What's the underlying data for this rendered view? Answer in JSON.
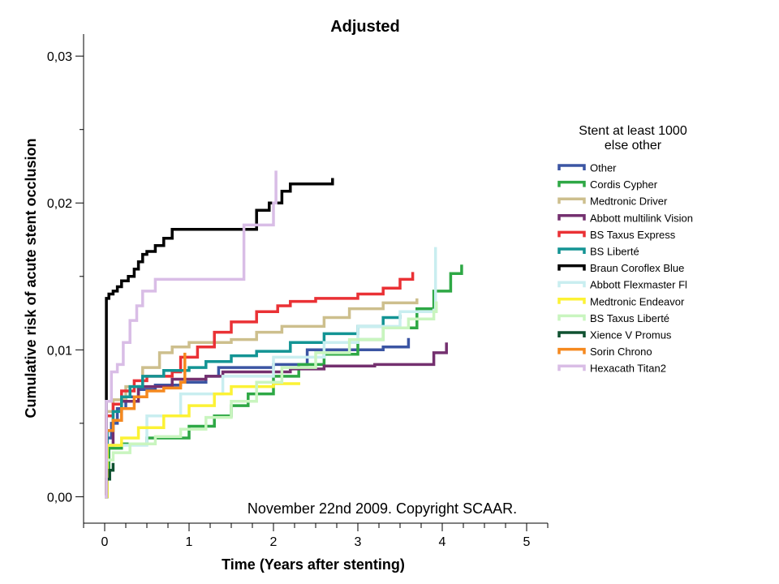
{
  "chart_data": {
    "type": "line",
    "step": true,
    "title": "Adjusted",
    "xlabel": "Time (Years after stenting)",
    "ylabel": "Cumulative risk of acute stent occlusion",
    "xlim": [
      -0.25,
      5.25
    ],
    "ylim": [
      -0.0018,
      0.0315
    ],
    "x_ticks": [
      0,
      1,
      2,
      3,
      4,
      5
    ],
    "x_tick_labels": [
      "0",
      "1",
      "2",
      "3",
      "4",
      "5"
    ],
    "y_ticks": [
      0.0,
      0.01,
      0.02,
      0.03
    ],
    "y_tick_labels": [
      "0,00",
      "0,01",
      "0,02",
      "0,03"
    ],
    "legend_title_lines": [
      "Stent at least 1000",
      "else other"
    ],
    "legend_position": "right",
    "annotation": "November 22nd 2009. Copyright SCAAR.",
    "series": [
      {
        "name": "Other",
        "color": "#3b55a3",
        "points": [
          [
            0,
            0
          ],
          [
            0.03,
            0.004
          ],
          [
            0.08,
            0.005
          ],
          [
            0.15,
            0.006
          ],
          [
            0.25,
            0.0068
          ],
          [
            0.4,
            0.0073
          ],
          [
            0.6,
            0.0076
          ],
          [
            0.9,
            0.0078
          ],
          [
            1.2,
            0.0082
          ],
          [
            1.35,
            0.0088
          ],
          [
            2.0,
            0.009
          ],
          [
            2.4,
            0.01
          ],
          [
            3.3,
            0.0102
          ],
          [
            3.6,
            0.0108
          ]
        ]
      },
      {
        "name": "Cordis Cypher",
        "color": "#2ea845",
        "points": [
          [
            0,
            0
          ],
          [
            0.02,
            0.002
          ],
          [
            0.05,
            0.0033
          ],
          [
            0.2,
            0.0036
          ],
          [
            0.5,
            0.004
          ],
          [
            1.0,
            0.0048
          ],
          [
            1.3,
            0.0055
          ],
          [
            1.5,
            0.0062
          ],
          [
            1.7,
            0.007
          ],
          [
            2.0,
            0.0082
          ],
          [
            2.3,
            0.009
          ],
          [
            2.6,
            0.0097
          ],
          [
            3.0,
            0.0107
          ],
          [
            3.3,
            0.0115
          ],
          [
            3.7,
            0.0128
          ],
          [
            3.9,
            0.014
          ],
          [
            4.1,
            0.0152
          ],
          [
            4.23,
            0.0158
          ]
        ]
      },
      {
        "name": "Medtronic Driver",
        "color": "#cdbf8d",
        "points": [
          [
            0,
            0
          ],
          [
            0.02,
            0.0058
          ],
          [
            0.1,
            0.0066
          ],
          [
            0.25,
            0.0075
          ],
          [
            0.45,
            0.0088
          ],
          [
            0.65,
            0.0098
          ],
          [
            0.8,
            0.0102
          ],
          [
            1.0,
            0.0105
          ],
          [
            1.5,
            0.0107
          ],
          [
            1.8,
            0.0112
          ],
          [
            2.1,
            0.0116
          ],
          [
            2.6,
            0.0122
          ],
          [
            2.9,
            0.0128
          ],
          [
            3.3,
            0.0132
          ],
          [
            3.7,
            0.0135
          ]
        ]
      },
      {
        "name": "Abbott multilink Vision",
        "color": "#74306f",
        "points": [
          [
            0,
            0
          ],
          [
            0.03,
            0.0035
          ],
          [
            0.1,
            0.0052
          ],
          [
            0.2,
            0.0065
          ],
          [
            0.4,
            0.0075
          ],
          [
            0.8,
            0.008
          ],
          [
            1.2,
            0.0082
          ],
          [
            1.4,
            0.0085
          ],
          [
            2.2,
            0.0087
          ],
          [
            2.6,
            0.0089
          ],
          [
            3.2,
            0.009
          ],
          [
            3.9,
            0.0098
          ],
          [
            4.05,
            0.0105
          ]
        ]
      },
      {
        "name": "BS Taxus Express",
        "color": "#ea3135",
        "points": [
          [
            0,
            0
          ],
          [
            0.02,
            0.0055
          ],
          [
            0.1,
            0.0063
          ],
          [
            0.2,
            0.0072
          ],
          [
            0.35,
            0.0079
          ],
          [
            0.5,
            0.0082
          ],
          [
            0.8,
            0.0085
          ],
          [
            0.9,
            0.0095
          ],
          [
            1.1,
            0.0102
          ],
          [
            1.3,
            0.0112
          ],
          [
            1.5,
            0.0119
          ],
          [
            1.8,
            0.0126
          ],
          [
            2.05,
            0.013
          ],
          [
            2.2,
            0.0133
          ],
          [
            2.5,
            0.0135
          ],
          [
            3.0,
            0.0138
          ],
          [
            3.3,
            0.0142
          ],
          [
            3.5,
            0.0148
          ],
          [
            3.65,
            0.0153
          ]
        ]
      },
      {
        "name": "BS Liberté",
        "color": "#139494",
        "points": [
          [
            0,
            0
          ],
          [
            0.03,
            0.0045
          ],
          [
            0.1,
            0.0058
          ],
          [
            0.2,
            0.0068
          ],
          [
            0.3,
            0.0075
          ],
          [
            0.45,
            0.0082
          ],
          [
            0.7,
            0.0086
          ],
          [
            1.0,
            0.0088
          ],
          [
            1.2,
            0.0092
          ],
          [
            1.5,
            0.0096
          ],
          [
            1.8,
            0.0099
          ],
          [
            2.2,
            0.0105
          ],
          [
            2.6,
            0.0111
          ],
          [
            3.0,
            0.0116
          ],
          [
            3.3,
            0.0122
          ],
          [
            3.5,
            0.0124
          ]
        ]
      },
      {
        "name": "Braun Coroflex Blue",
        "color": "#000000",
        "points": [
          [
            0,
            0
          ],
          [
            0.02,
            0.0135
          ],
          [
            0.05,
            0.0138
          ],
          [
            0.1,
            0.014
          ],
          [
            0.15,
            0.0143
          ],
          [
            0.2,
            0.0147
          ],
          [
            0.28,
            0.015
          ],
          [
            0.35,
            0.0155
          ],
          [
            0.4,
            0.016
          ],
          [
            0.45,
            0.0165
          ],
          [
            0.5,
            0.0167
          ],
          [
            0.6,
            0.0171
          ],
          [
            0.7,
            0.0176
          ],
          [
            0.8,
            0.0182
          ],
          [
            1.8,
            0.0195
          ],
          [
            1.95,
            0.02
          ],
          [
            2.1,
            0.0208
          ],
          [
            2.2,
            0.0213
          ],
          [
            2.7,
            0.0217
          ]
        ]
      },
      {
        "name": "Abbott Flexmaster Fl",
        "color": "#c9eef0",
        "points": [
          [
            0,
            0
          ],
          [
            0.02,
            0.0035
          ],
          [
            0.5,
            0.0055
          ],
          [
            0.9,
            0.007
          ],
          [
            1.4,
            0.0082
          ],
          [
            2.0,
            0.0095
          ],
          [
            2.6,
            0.0105
          ],
          [
            3.0,
            0.0116
          ],
          [
            3.5,
            0.0126
          ],
          [
            3.9,
            0.0127
          ],
          [
            3.92,
            0.017
          ]
        ]
      },
      {
        "name": "Medtronic Endeavor",
        "color": "#fcf235",
        "points": [
          [
            0,
            0
          ],
          [
            0.03,
            0.0035
          ],
          [
            0.2,
            0.004
          ],
          [
            0.4,
            0.0047
          ],
          [
            0.7,
            0.0055
          ],
          [
            1.0,
            0.0062
          ],
          [
            1.3,
            0.007
          ],
          [
            1.5,
            0.0075
          ],
          [
            2.0,
            0.0077
          ],
          [
            2.3,
            0.0078
          ]
        ]
      },
      {
        "name": "BS Taxus Liberté",
        "color": "#c9f5bf",
        "points": [
          [
            0,
            0
          ],
          [
            0.02,
            0.0025
          ],
          [
            0.1,
            0.003
          ],
          [
            0.3,
            0.0036
          ],
          [
            0.6,
            0.0041
          ],
          [
            0.9,
            0.0046
          ],
          [
            1.2,
            0.0054
          ],
          [
            1.5,
            0.0065
          ],
          [
            1.8,
            0.0078
          ],
          [
            2.1,
            0.0088
          ],
          [
            2.5,
            0.0098
          ],
          [
            2.9,
            0.0107
          ],
          [
            3.3,
            0.0115
          ],
          [
            3.6,
            0.0121
          ],
          [
            3.9,
            0.0126
          ],
          [
            3.93,
            0.0133
          ]
        ]
      },
      {
        "name": "Xience V Promus",
        "color": "#0f5130",
        "points": [
          [
            0,
            0
          ],
          [
            0.02,
            0.0012
          ],
          [
            0.06,
            0.0018
          ],
          [
            0.1,
            0.0023
          ]
        ]
      },
      {
        "name": "Sorin Chrono",
        "color": "#f5891f",
        "points": [
          [
            0,
            0
          ],
          [
            0.02,
            0.0045
          ],
          [
            0.1,
            0.0052
          ],
          [
            0.2,
            0.006
          ],
          [
            0.35,
            0.0068
          ],
          [
            0.5,
            0.0072
          ],
          [
            0.7,
            0.0074
          ],
          [
            0.9,
            0.0078
          ],
          [
            0.95,
            0.0098
          ]
        ]
      },
      {
        "name": "Hexacath Titan2",
        "color": "#d9bde6",
        "points": [
          [
            0,
            0
          ],
          [
            0.02,
            0.0065
          ],
          [
            0.08,
            0.0085
          ],
          [
            0.15,
            0.009
          ],
          [
            0.22,
            0.0105
          ],
          [
            0.3,
            0.012
          ],
          [
            0.38,
            0.013
          ],
          [
            0.45,
            0.014
          ],
          [
            0.6,
            0.0148
          ],
          [
            1.65,
            0.0185
          ],
          [
            2.0,
            0.02
          ],
          [
            2.03,
            0.0222
          ]
        ]
      }
    ]
  }
}
